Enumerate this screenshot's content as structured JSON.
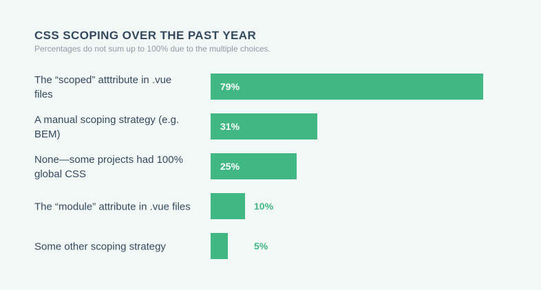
{
  "chart": {
    "title": "CSS SCOPING OVER THE PAST YEAR",
    "subtitle": "Percentages do not sum up to 100% due to the multiple choices."
  },
  "chart_data": {
    "type": "bar",
    "orientation": "horizontal",
    "title": "CSS SCOPING OVER THE PAST YEAR",
    "subtitle": "Percentages do not sum up to 100% due to the multiple choices.",
    "categories": [
      "The “scoped” atttribute in .vue files",
      "A manual scoping strategy (e.g. BEM)",
      "None—some projects had 100% global CSS",
      "The “module” attribute in .vue files",
      "Some other scoping strategy"
    ],
    "values": [
      79,
      31,
      25,
      10,
      5
    ],
    "value_labels": [
      "79%",
      "31%",
      "25%",
      "10%",
      "5%"
    ],
    "xlim": [
      0,
      79
    ],
    "unit": "%",
    "grid": false,
    "bar_color": "#41b883"
  }
}
